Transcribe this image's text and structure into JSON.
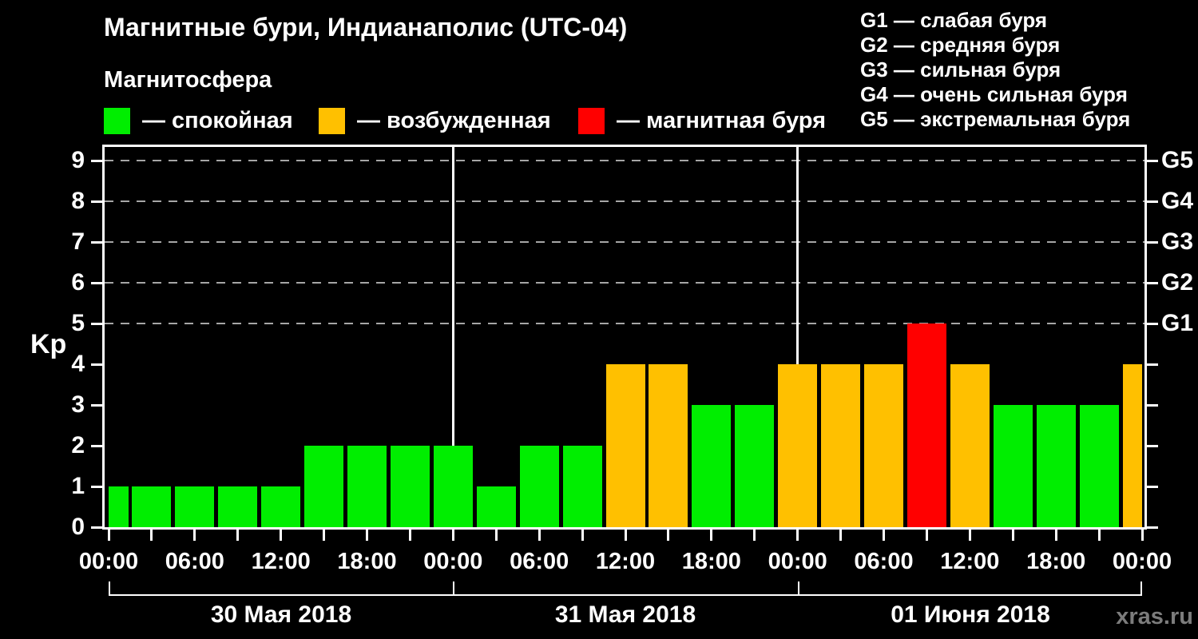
{
  "title": "Магнитные бури, Индианаполис (UTC-04)",
  "subtitle": "Магнитосфера",
  "legend": {
    "items": [
      {
        "label": "— спокойная",
        "color": "#00ee00"
      },
      {
        "label": "— возбужденная",
        "color": "#ffc000"
      },
      {
        "label": "— магнитная буря",
        "color": "#ff0000"
      }
    ]
  },
  "g_scale_legend": [
    "G1 — слабая буря",
    "G2 — средняя буря",
    "G3 — сильная буря",
    "G4 — очень сильная буря",
    "G5 — экстремальная буря"
  ],
  "watermark": "xras.ru",
  "chart_data": {
    "type": "bar",
    "title": "Магнитные бури, Индианаполис (UTC-04)",
    "ylabel": "Kp",
    "ylim": [
      0,
      9.35
    ],
    "y_ticks": [
      0,
      1,
      2,
      3,
      4,
      5,
      6,
      7,
      8,
      9
    ],
    "gridline_levels": [
      5,
      6,
      7,
      8,
      9
    ],
    "right_axis": [
      {
        "label": "G1",
        "kp": 5
      },
      {
        "label": "G2",
        "kp": 6
      },
      {
        "label": "G3",
        "kp": 7
      },
      {
        "label": "G4",
        "kp": 8
      },
      {
        "label": "G5",
        "kp": 9
      }
    ],
    "bar_interval_hours": 3,
    "x_tick_interval_hours": 3,
    "x_label_interval_hours": 6,
    "x_time_labels": [
      "00:00",
      "06:00",
      "12:00",
      "18:00",
      "00:00",
      "06:00",
      "12:00",
      "18:00",
      "00:00",
      "06:00",
      "12:00",
      "18:00",
      "00:00"
    ],
    "days": [
      {
        "date": "30 Мая 2018",
        "values": [
          1,
          1,
          1,
          1,
          1,
          2,
          2,
          2
        ]
      },
      {
        "date": "31 Мая 2018",
        "values": [
          2,
          1,
          2,
          2,
          4,
          4,
          3,
          3
        ]
      },
      {
        "date": "01 Июня 2018",
        "values": [
          4,
          4,
          4,
          5,
          4,
          3,
          3,
          3
        ]
      }
    ],
    "trailing_bar_value": 4,
    "color_rule": {
      "quiet_max_kp": 3,
      "excited_kp": 4,
      "storm_min_kp": 5
    },
    "legend_note": "green = quiet, orange = excited, red = magnetic storm"
  }
}
